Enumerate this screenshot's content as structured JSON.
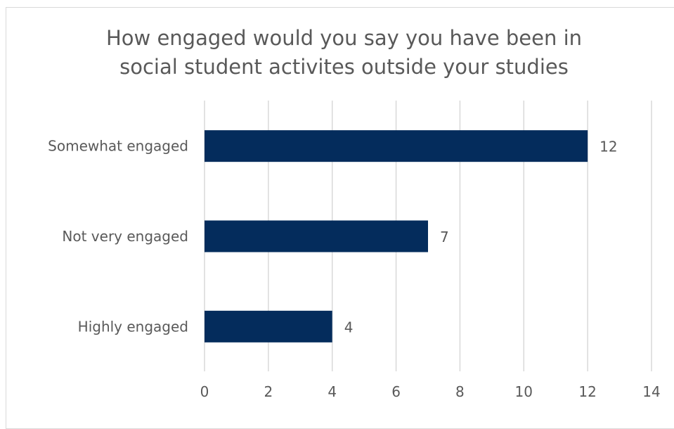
{
  "chart_data": {
    "type": "bar",
    "orientation": "horizontal",
    "title_lines": [
      "How engaged would you say you have been in",
      "social student activites outside your studies"
    ],
    "categories": [
      "Somewhat engaged",
      "Not very engaged",
      "Highly engaged"
    ],
    "values": [
      12,
      7,
      4
    ],
    "xlim": [
      0,
      14
    ],
    "xticks": [
      0,
      2,
      4,
      6,
      8,
      10,
      12,
      14
    ],
    "grid": true,
    "data_labels": true,
    "colors": {
      "bar": "#042c5c",
      "text": "#595959",
      "grid": "#d9d9d9"
    }
  }
}
